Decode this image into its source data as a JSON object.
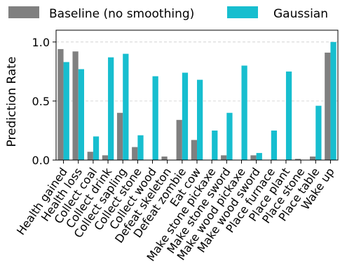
{
  "chart_data": {
    "type": "bar",
    "title": "",
    "xlabel": "",
    "ylabel": "Prediction Rate",
    "ylim": [
      0,
      1.1
    ],
    "yticks": [
      0.0,
      0.5,
      1.0
    ],
    "ytick_labels": [
      "0.0",
      "0.5",
      "1.0"
    ],
    "grid": true,
    "legend_position": "top",
    "categories": [
      "Health gained",
      "Health loss",
      "Collect coal",
      "Collect drink",
      "Collect sapling",
      "Collect stone",
      "Collect wood",
      "Defeat skeleton",
      "Defeat zombie",
      "Eat cow",
      "Make stone pickaxe",
      "Make stone sword",
      "Make wood pickaxe",
      "Make wood sword",
      "Place furnace",
      "Place plant",
      "Place stone",
      "Place table",
      "Wake up"
    ],
    "series": [
      {
        "name": "Baseline (no smoothing)",
        "color": "#808080",
        "values": [
          0.94,
          0.92,
          0.07,
          0.04,
          0.4,
          0.11,
          0.0,
          0.03,
          0.34,
          0.17,
          0.0,
          0.04,
          0.0,
          0.04,
          0.0,
          0.0,
          0.01,
          0.03,
          0.91
        ]
      },
      {
        "name": "Gaussian",
        "color": "#17becf",
        "values": [
          0.83,
          0.77,
          0.2,
          0.87,
          0.9,
          0.21,
          0.71,
          0.0,
          0.74,
          0.68,
          0.25,
          0.4,
          0.8,
          0.06,
          0.25,
          0.75,
          0.0,
          0.46,
          1.0
        ]
      }
    ]
  }
}
